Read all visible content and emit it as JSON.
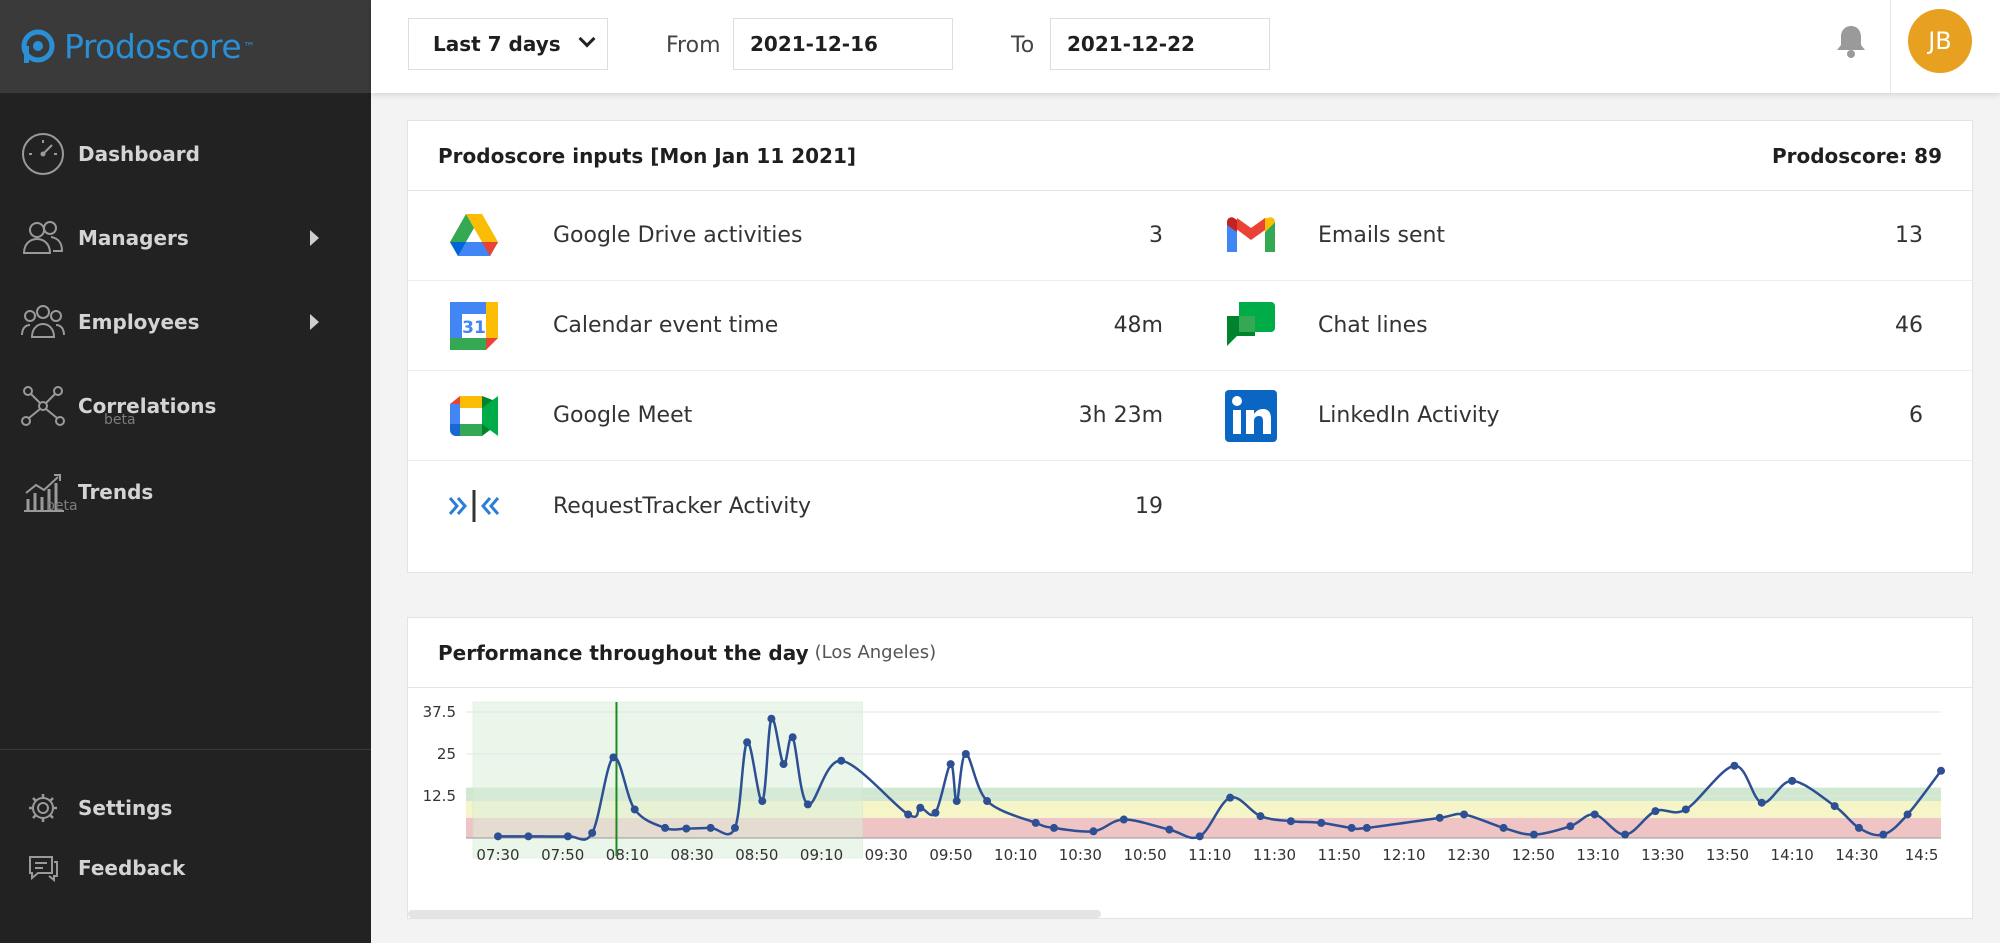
{
  "brand": {
    "name": "Prodoscore",
    "tm": "™"
  },
  "sidebar": {
    "items": [
      {
        "label": "Dashboard",
        "icon": "speedometer-icon",
        "beta": ""
      },
      {
        "label": "Managers",
        "icon": "managers-icon",
        "beta": ""
      },
      {
        "label": "Employees",
        "icon": "employees-icon",
        "beta": ""
      },
      {
        "label": "Correlations",
        "icon": "network-icon",
        "beta": "beta"
      },
      {
        "label": "Trends",
        "icon": "trend-chart-icon",
        "beta": "beta"
      }
    ],
    "bottom": [
      {
        "label": "Settings",
        "icon": "gear-icon"
      },
      {
        "label": "Feedback",
        "icon": "chat-bubble-icon"
      }
    ]
  },
  "topbar": {
    "range": "Last 7 days",
    "from_label": "From",
    "from_value": "2021-12-16",
    "to_label": "To",
    "to_value": "2021-12-22",
    "avatar_initials": "JB"
  },
  "inputs_card": {
    "title": "Prodoscore inputs [Mon Jan 11 2021]",
    "score": "Prodoscore: 89",
    "left": [
      {
        "label": "Google Drive activities",
        "value": "3",
        "icon": "google-drive-icon"
      },
      {
        "label": "Calendar event time",
        "value": "48m",
        "icon": "google-calendar-icon"
      },
      {
        "label": "Google Meet",
        "value": "3h 23m",
        "icon": "google-meet-icon"
      },
      {
        "label": "RequestTracker Activity",
        "value": "19",
        "icon": "requesttracker-icon"
      }
    ],
    "right": [
      {
        "label": "Emails sent",
        "value": "13",
        "icon": "gmail-icon"
      },
      {
        "label": "Chat lines",
        "value": "46",
        "icon": "google-chat-icon"
      },
      {
        "label": "LinkedIn Activity",
        "value": "6",
        "icon": "linkedin-icon"
      }
    ],
    "calendar_day": "31"
  },
  "performance_card": {
    "title": "Performance throughout the day",
    "subtitle": "(Los Angeles)"
  },
  "chart_data": {
    "type": "line",
    "title": "Performance throughout the day",
    "subtitle": "(Los Angeles)",
    "ylim": [
      0,
      37.5
    ],
    "yticks": [
      "12.5",
      "25",
      "37.5"
    ],
    "xticks": [
      "07:30",
      "07:50",
      "08:10",
      "08:30",
      "08:50",
      "09:10",
      "09:30",
      "09:50",
      "10:10",
      "10:30",
      "10:50",
      "11:10",
      "11:30",
      "11:50",
      "12:10",
      "12:30",
      "12:50",
      "13:10",
      "13:30",
      "13:50",
      "14:10",
      "14:30",
      "14:5"
    ],
    "x_minutes_start": 450,
    "x": [
      450,
      460,
      473,
      481,
      488,
      495,
      505,
      512,
      520,
      528,
      532,
      537,
      540,
      544,
      547,
      552,
      563,
      585,
      589,
      594,
      599,
      601,
      604,
      611,
      627,
      633,
      646,
      656,
      671,
      681,
      691,
      701,
      711,
      721,
      731,
      736,
      760,
      768,
      781,
      791,
      803,
      811,
      821,
      831,
      841,
      857,
      866,
      876,
      890,
      898,
      906,
      914,
      925
    ],
    "y": [
      0.5,
      0.5,
      0.5,
      1.5,
      24.0,
      8.5,
      3.0,
      2.8,
      3.0,
      3.0,
      28.5,
      11.0,
      35.5,
      22.0,
      30.0,
      10.0,
      23.0,
      7.0,
      9.0,
      7.5,
      22.0,
      11.0,
      25.0,
      11.0,
      4.5,
      3.0,
      2.0,
      5.5,
      2.5,
      0.5,
      12.0,
      6.5,
      5.0,
      4.5,
      3.0,
      3.0,
      6.0,
      7.0,
      3.0,
      1.0,
      3.5,
      7.0,
      1.0,
      8.0,
      8.5,
      21.5,
      10.5,
      17.0,
      9.5,
      3.0,
      1.0,
      7.0,
      20.0
    ],
    "series": [
      {
        "name": "",
        "color": "#2d4f93"
      }
    ],
    "bands": [
      {
        "from": 0,
        "to": 6,
        "color": "#efc4c4"
      },
      {
        "from": 6,
        "to": 11,
        "color": "#f5f5c8"
      },
      {
        "from": 11,
        "to": 15,
        "color": "#cfe8cf"
      }
    ],
    "highlight": {
      "from": "07:30",
      "to": "09:30",
      "color": "#dcefdc"
    },
    "marker_time": "08:09",
    "grid": true,
    "legend": "none"
  }
}
